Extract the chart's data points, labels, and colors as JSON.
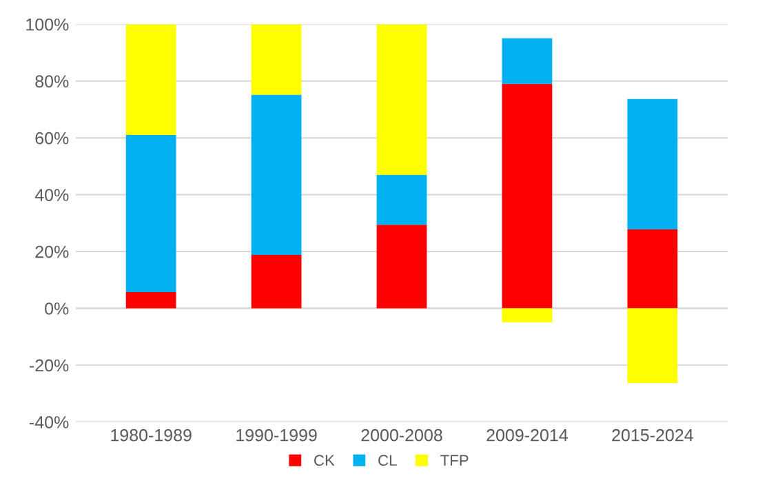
{
  "chart_data": {
    "type": "bar",
    "stacked": true,
    "categories": [
      "1980-1989",
      "1990-1999",
      "2000-2008",
      "2009-2014",
      "2015-2024"
    ],
    "series": [
      {
        "name": "CK",
        "color": "#ff0000",
        "values": [
          5.7,
          18.8,
          29.4,
          79.0,
          27.8
        ]
      },
      {
        "name": "CL",
        "color": "#00b0f0",
        "values": [
          55.3,
          56.4,
          17.6,
          16.1,
          45.9
        ]
      },
      {
        "name": "TFP",
        "color": "#ffff00",
        "values": [
          39.0,
          24.8,
          53.0,
          -4.9,
          -26.3
        ]
      }
    ],
    "ylim": [
      -40,
      100
    ],
    "yticks": [
      {
        "value": -40,
        "label": "-40%"
      },
      {
        "value": -20,
        "label": "-20%"
      },
      {
        "value": 0,
        "label": "0%"
      },
      {
        "value": 20,
        "label": "20%"
      },
      {
        "value": 40,
        "label": "40%"
      },
      {
        "value": 60,
        "label": "60%"
      },
      {
        "value": 80,
        "label": "80%"
      },
      {
        "value": 100,
        "label": "100%"
      }
    ],
    "grid": "y",
    "legend": "bottom"
  }
}
